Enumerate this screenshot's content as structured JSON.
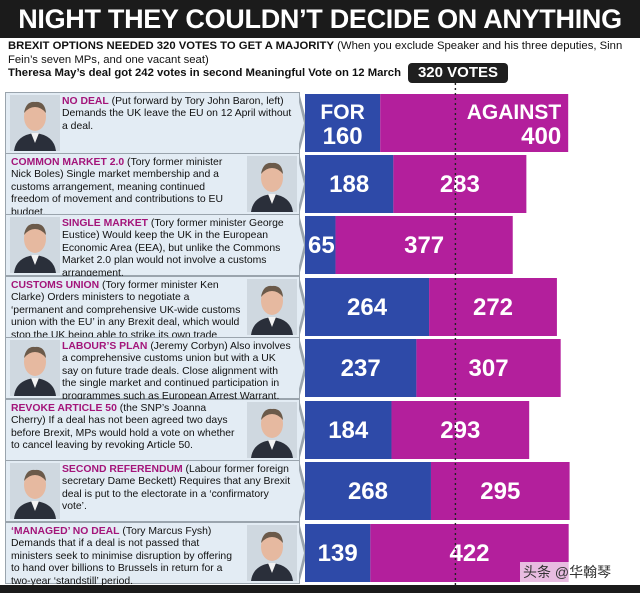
{
  "title": "NIGHT THEY COULDN’T DECIDE ON ANYTHING",
  "intro": {
    "bold1": "BREXIT OPTIONS NEEDED 320 VOTES TO GET A MAJORITY",
    "normal": " (When you exclude Speaker and his three deputies, Sinn Fein’s seven MPs, and one vacant seat)",
    "bold2": "Theresa May’s deal got 242 votes in second Meaningful Vote on 12 March"
  },
  "majority_label": "320 VOTES",
  "colors": {
    "for": "#2e4aa8",
    "against": "#b31f9c",
    "card": "#e3ecf4",
    "headline": "#a3157a"
  },
  "options": [
    {
      "head": "NO DEAL",
      "text": " (Put forward by Tory John Baron, left) Demands the UK leave the EU on 12 April without a deal.",
      "for_label": "FOR",
      "against_label": "AGAINST"
    },
    {
      "head": "COMMON MARKET 2.0",
      "text": " (Tory former minister Nick Boles) Single market membership and a customs arrangement, meaning continued freedom of movement and contributions to EU budget."
    },
    {
      "head": "SINGLE MARKET",
      "text": " (Tory former minister George Eustice) Would keep the UK in the European Economic Area (EEA), but unlike the Commons Market 2.0 plan would not involve a customs arrangement."
    },
    {
      "head": "CUSTOMS UNION",
      "text": " (Tory former minister Ken Clarke) Orders ministers to negotiate a ‘permanent and comprehensive UK-wide customs union with the EU’ in any Brexit deal, which would stop the UK being able to strike its own trade deals."
    },
    {
      "head": "LABOUR’S PLAN",
      "text": " (Jeremy Corbyn) Also involves a comprehensive customs union but with a UK say on future trade deals. Close alignment with the single market and continued participation in programmes such as European Arrest Warrant."
    },
    {
      "head": "REVOKE ARTICLE 50",
      "text": " (the SNP’s Joanna Cherry) If a deal has not been agreed two days before Brexit, MPs would hold a vote on whether to cancel leaving by revoking Article 50."
    },
    {
      "head": "SECOND REFERENDUM",
      "text": " (Labour former foreign secretary Dame Beckett) Requires that any Brexit deal is put to the electorate in a ‘confirmatory vote’."
    },
    {
      "head": "‘MANAGED’ NO DEAL",
      "text": " (Tory Marcus Fysh) Demands that if a deal is not passed that ministers seek to minimise disruption by offering to hand over billions to Brussels in return for a two-year ‘standstill’ period."
    }
  ],
  "chart_data": {
    "type": "bar",
    "orientation": "horizontal",
    "stacked": true,
    "categories": [
      "NO DEAL",
      "COMMON MARKET 2.0",
      "SINGLE MARKET",
      "CUSTOMS UNION",
      "LABOUR’S PLAN",
      "REVOKE ARTICLE 50",
      "SECOND REFERENDUM",
      "‘MANAGED’ NO DEAL"
    ],
    "series": [
      {
        "name": "FOR",
        "values": [
          160,
          188,
          65,
          264,
          237,
          184,
          268,
          139
        ]
      },
      {
        "name": "AGAINST",
        "values": [
          400,
          283,
          377,
          272,
          307,
          293,
          295,
          422
        ]
      }
    ],
    "majority_threshold": 320,
    "title": "NIGHT THEY COULDN’T DECIDE ON ANYTHING"
  },
  "watermark": "头条 @华翰琴"
}
